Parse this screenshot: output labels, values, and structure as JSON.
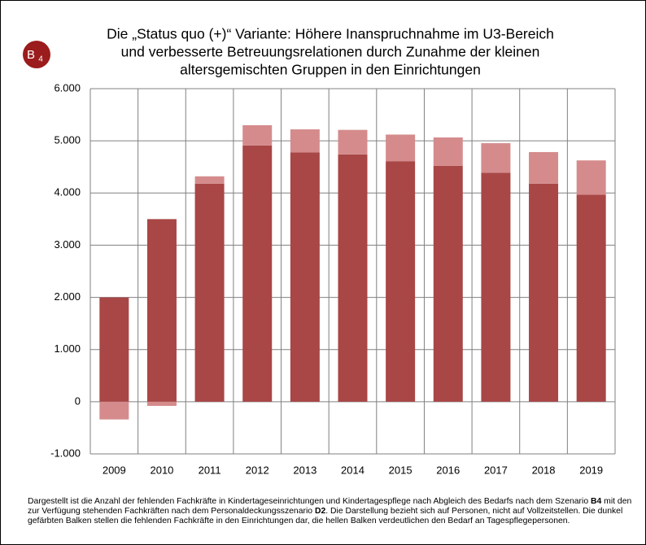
{
  "chart_data": {
    "type": "stacked_bar",
    "title": [
      "Die „Status quo (+)“ Variante: Höhere Inanspruchnahme im U3-Bereich",
      "und verbesserte Betreuungsrelationen durch Zunahme der kleinen",
      "altersgemischten Gruppen in den Einrichtungen"
    ],
    "badge": {
      "letter": "B",
      "sub": "4"
    },
    "categories": [
      "2009",
      "2010",
      "2011",
      "2012",
      "2013",
      "2014",
      "2015",
      "2016",
      "2017",
      "2018",
      "2019"
    ],
    "series": [
      {
        "color": "#a94646",
        "values": [
          2000,
          3500,
          4180,
          4910,
          4780,
          4740,
          4610,
          4520,
          4390,
          4180,
          3970
        ]
      },
      {
        "color": "#d58b8c",
        "values": [
          -340,
          -80,
          140,
          390,
          440,
          470,
          510,
          545,
          565,
          605,
          655
        ]
      }
    ],
    "ylim": [
      -1000,
      6000
    ],
    "yticks": [
      {
        "value": -1000,
        "label": "-1.000"
      },
      0,
      {
        "value": 1000,
        "label": "1.000"
      },
      {
        "value": 2000,
        "label": "2.000"
      },
      {
        "value": 3000,
        "label": "3.000"
      },
      {
        "value": 4000,
        "label": "4.000"
      },
      {
        "value": 5000,
        "label": "5.000"
      },
      {
        "value": 6000,
        "label": "6.000"
      }
    ],
    "grid": true,
    "note": [
      {
        "text": "Dargestellt ist die Anzahl der fehlenden Fachkräfte in Kindertageseinrichtungen und Kindertagespflege nach Abgleich des Bedarfs nach dem Szenario "
      },
      {
        "text": "B4",
        "bold": true
      },
      {
        "text": " mit den zur Verfügung stehenden Fachkräften nach dem Personaldeckungsszenario "
      },
      {
        "text": "D2",
        "bold": true
      },
      {
        "text": ". Die Darstellung bezieht sich auf Personen, nicht auf Vollzeitstellen. Die dunkel gefärbten Balken stellen die fehlenden Fachkräfte in den Einrichtungen dar, die hellen Balken verdeutlichen den Bedarf an Tagespflegepersonen."
      }
    ]
  }
}
